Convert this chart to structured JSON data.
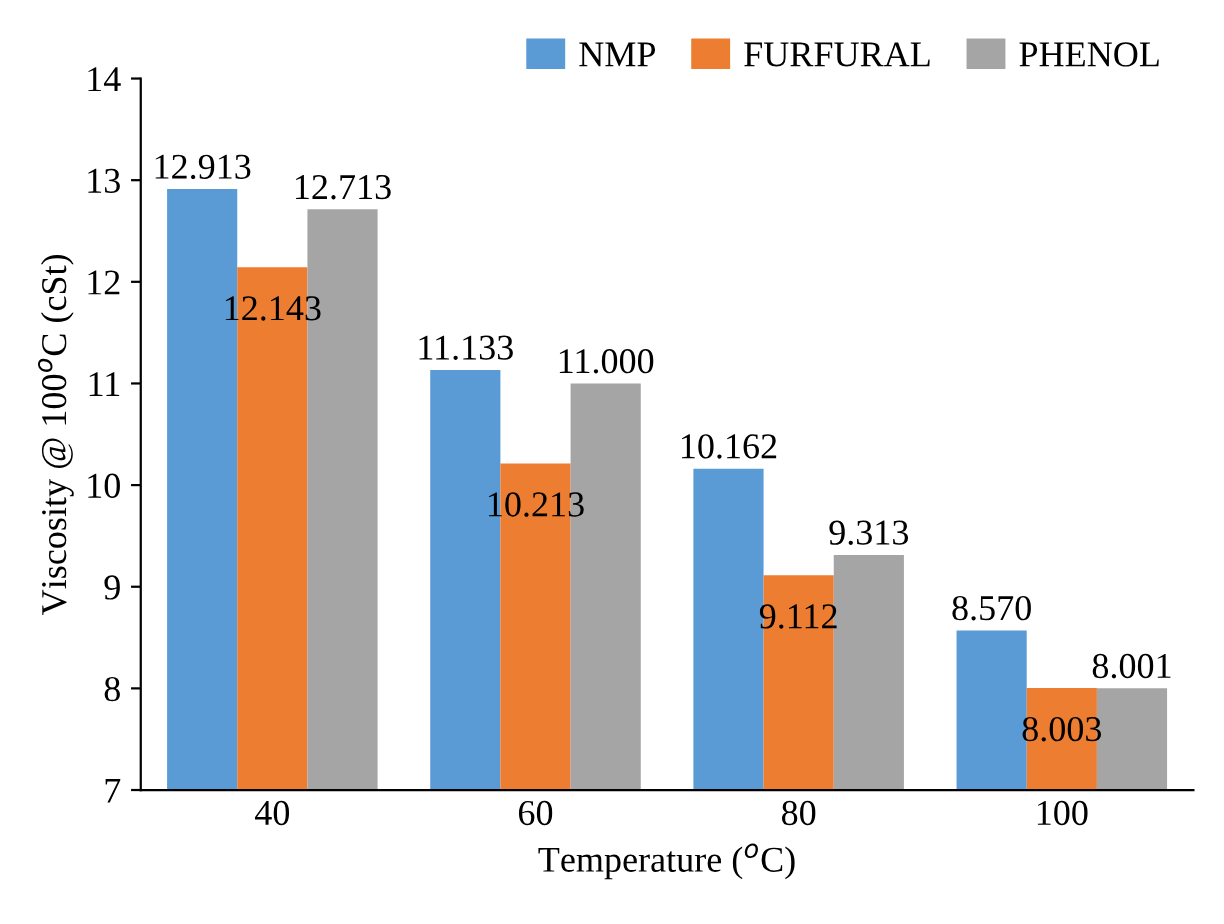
{
  "chart_data": {
    "type": "bar",
    "xlabel": "Temperature ($^{o}$C)",
    "ylabel": "Viscosity @ 100$^{o}$C (cSt)",
    "categories": [
      "40",
      "60",
      "80",
      "100"
    ],
    "series": [
      {
        "name": "NMP",
        "color": "#5b9bd5",
        "values": [
          12.913,
          11.133,
          10.162,
          8.57
        ],
        "value_labels": [
          "12.913",
          "11.133",
          "10.162",
          "8.570"
        ]
      },
      {
        "name": "FURFURAL",
        "color": "#ed7d31",
        "values": [
          12.143,
          10.213,
          9.112,
          8.003
        ],
        "value_labels": [
          "12.143",
          "10.213",
          "9.112",
          "8.003"
        ]
      },
      {
        "name": "PHENOL",
        "color": "#a5a5a5",
        "values": [
          12.713,
          11.0,
          9.313,
          8.001
        ],
        "value_labels": [
          "12.713",
          "11.000",
          "9.313",
          "8.001"
        ]
      }
    ],
    "ylim": [
      7,
      14
    ],
    "yticks": [
      7,
      8,
      9,
      10,
      11,
      12,
      13,
      14
    ],
    "grid": false,
    "legend": "top right"
  }
}
